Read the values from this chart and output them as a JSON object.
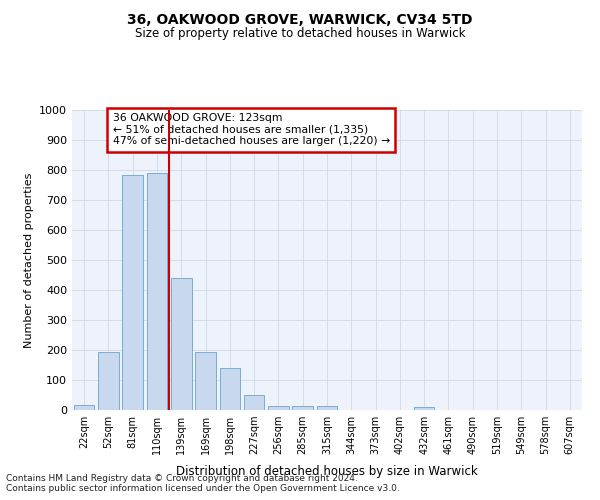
{
  "title_line1": "36, OAKWOOD GROVE, WARWICK, CV34 5TD",
  "title_line2": "Size of property relative to detached houses in Warwick",
  "xlabel": "Distribution of detached houses by size in Warwick",
  "ylabel": "Number of detached properties",
  "categories": [
    "22sqm",
    "52sqm",
    "81sqm",
    "110sqm",
    "139sqm",
    "169sqm",
    "198sqm",
    "227sqm",
    "256sqm",
    "285sqm",
    "315sqm",
    "344sqm",
    "373sqm",
    "402sqm",
    "432sqm",
    "461sqm",
    "490sqm",
    "519sqm",
    "549sqm",
    "578sqm",
    "607sqm"
  ],
  "values": [
    18,
    195,
    785,
    790,
    440,
    192,
    140,
    50,
    14,
    12,
    12,
    0,
    0,
    0,
    10,
    0,
    0,
    0,
    0,
    0,
    0
  ],
  "bar_color": "#c8d8ee",
  "bar_edge_color": "#7aadd4",
  "grid_color": "#d0d8e8",
  "bg_color": "#eef2fb",
  "vline_x": 3.5,
  "vline_color": "#cc0000",
  "annotation_text_line1": "36 OAKWOOD GROVE: 123sqm",
  "annotation_text_line2": "← 51% of detached houses are smaller (1,335)",
  "annotation_text_line3": "47% of semi-detached houses are larger (1,220) →",
  "annotation_box_color": "#cc0000",
  "footnote_line1": "Contains HM Land Registry data © Crown copyright and database right 2024.",
  "footnote_line2": "Contains public sector information licensed under the Open Government Licence v3.0.",
  "ylim": [
    0,
    1000
  ],
  "yticks": [
    0,
    100,
    200,
    300,
    400,
    500,
    600,
    700,
    800,
    900,
    1000
  ]
}
